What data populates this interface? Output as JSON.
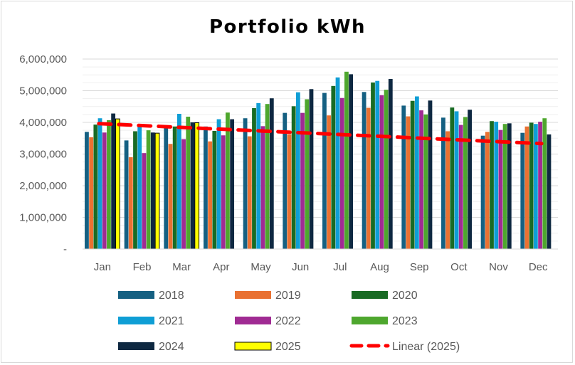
{
  "chart_data": {
    "type": "bar",
    "title": "Portfolio kWh",
    "xlabel": "",
    "ylabel": "",
    "categories": [
      "Jan",
      "Feb",
      "Mar",
      "Apr",
      "May",
      "Jun",
      "Jul",
      "Aug",
      "Sep",
      "Oct",
      "Nov",
      "Dec"
    ],
    "yticks": [
      "-",
      "1,000,000",
      "2,000,000",
      "3,000,000",
      "4,000,000",
      "5,000,000",
      "6,000,000"
    ],
    "ylim": [
      0,
      6000000
    ],
    "grid": true,
    "legend_position": "bottom",
    "series": [
      {
        "name": "2018",
        "color": "#156082",
        "values": [
          3700000,
          3430000,
          3870000,
          3870000,
          4130000,
          4300000,
          4930000,
          4960000,
          4530000,
          4150000,
          3580000,
          3670000
        ]
      },
      {
        "name": "2019",
        "color": "#E97132",
        "values": [
          3530000,
          2900000,
          3320000,
          3400000,
          3560000,
          3620000,
          4220000,
          4460000,
          4190000,
          3720000,
          3700000,
          3870000
        ]
      },
      {
        "name": "2020",
        "color": "#196B24",
        "values": [
          3930000,
          3720000,
          3870000,
          3730000,
          4450000,
          4510000,
          5150000,
          5260000,
          4680000,
          4470000,
          4040000,
          3990000
        ]
      },
      {
        "name": "2021",
        "color": "#0F9ED5",
        "values": [
          4130000,
          3870000,
          4270000,
          4100000,
          4610000,
          4950000,
          5420000,
          5310000,
          4820000,
          4350000,
          4020000,
          3950000
        ]
      },
      {
        "name": "2022",
        "color": "#A02B93",
        "values": [
          3680000,
          3030000,
          3470000,
          3590000,
          3880000,
          4300000,
          4770000,
          4860000,
          4380000,
          3920000,
          3760000,
          4020000
        ]
      },
      {
        "name": "2023",
        "color": "#4EA72E",
        "values": [
          4070000,
          3750000,
          4180000,
          4310000,
          4580000,
          4730000,
          5600000,
          5030000,
          4250000,
          4170000,
          3950000,
          4130000
        ]
      },
      {
        "name": "2024",
        "color": "#0E2841",
        "values": [
          4280000,
          3680000,
          4000000,
          4100000,
          4760000,
          5050000,
          5520000,
          5370000,
          4690000,
          4400000,
          3970000,
          3620000
        ]
      },
      {
        "name": "2025",
        "color": "#FFFF00",
        "outline": "#000000",
        "values": [
          4110000,
          3660000,
          3990000,
          null,
          null,
          null,
          null,
          null,
          null,
          null,
          null,
          null
        ]
      }
    ],
    "trendline": {
      "name": "Linear (2025)",
      "color": "#FF0000",
      "start": 3960000,
      "end": 3330000
    }
  }
}
